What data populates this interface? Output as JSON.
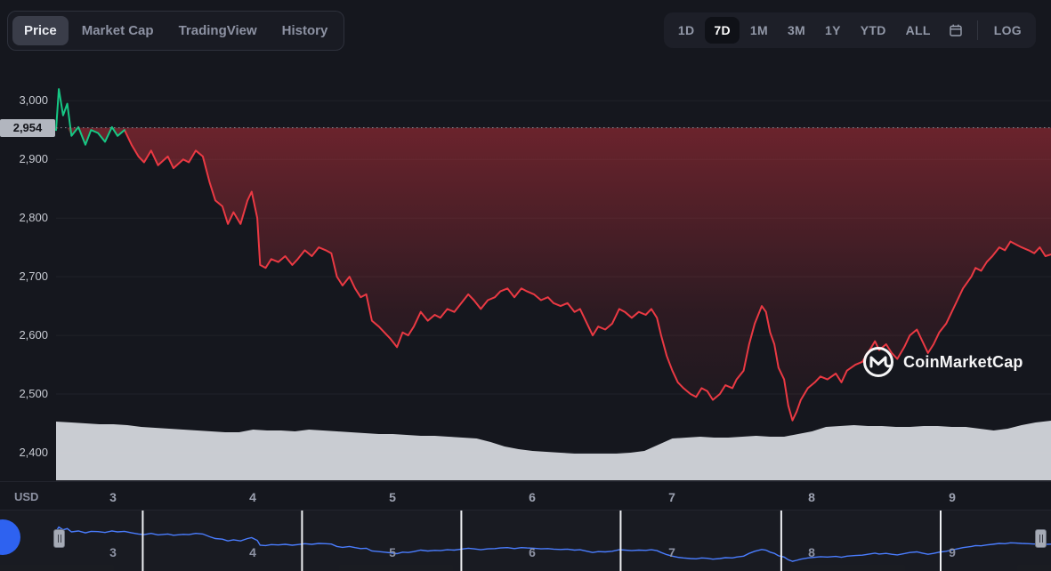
{
  "header": {
    "view_tabs": [
      {
        "label": "Price",
        "active": true
      },
      {
        "label": "Market Cap",
        "active": false
      },
      {
        "label": "TradingView",
        "active": false
      },
      {
        "label": "History",
        "active": false
      }
    ],
    "ranges": [
      {
        "label": "1D",
        "active": false
      },
      {
        "label": "7D",
        "active": true
      },
      {
        "label": "1M",
        "active": false
      },
      {
        "label": "3M",
        "active": false
      },
      {
        "label": "1Y",
        "active": false
      },
      {
        "label": "YTD",
        "active": false
      },
      {
        "label": "ALL",
        "active": false
      }
    ],
    "log_label": "LOG"
  },
  "watermark": {
    "text": "CoinMarketCap"
  },
  "icons": {
    "calendar": "calendar-icon",
    "logo": "coinmarketcap-logo-icon",
    "drag_handle": "drag-handle-icon"
  },
  "colors": {
    "up": "#16c784",
    "down": "#ea3943",
    "navigator_line": "#4a7dff",
    "volume_area": "#d9dce2",
    "badge_bg": "#b2b6bf",
    "baseline_dotted": "#8b8f99"
  },
  "chart_data": {
    "type": "line",
    "title": "7D price chart (USD)",
    "unit_label": "USD",
    "current_price_label": "2,954",
    "baseline_price": 2954,
    "x_range": [
      2.59,
      9.71
    ],
    "y_range": [
      2353,
      3058
    ],
    "x_ticks": [
      3,
      4,
      5,
      6,
      7,
      8,
      9
    ],
    "y_ticks": [
      3000,
      2900,
      2800,
      2700,
      2600,
      2500,
      2400
    ],
    "y_tick_labels": [
      "3,000",
      "2,900",
      "2,800",
      "2,700",
      "2,600",
      "2,500",
      "2,400"
    ],
    "grid": "horizontal-faint",
    "legend": "none",
    "series": [
      {
        "name": "price-up-segment",
        "color": "#16c784",
        "points": [
          [
            2.59,
            2950
          ],
          [
            2.61,
            3020
          ],
          [
            2.64,
            2975
          ],
          [
            2.67,
            2995
          ],
          [
            2.7,
            2940
          ],
          [
            2.75,
            2955
          ],
          [
            2.8,
            2925
          ],
          [
            2.84,
            2950
          ],
          [
            2.89,
            2945
          ],
          [
            2.94,
            2930
          ],
          [
            2.99,
            2955
          ],
          [
            3.03,
            2940
          ],
          [
            3.08,
            2950
          ]
        ]
      },
      {
        "name": "price-down-segment",
        "color": "#ea3943",
        "points": [
          [
            3.08,
            2950
          ],
          [
            3.13,
            2925
          ],
          [
            3.18,
            2905
          ],
          [
            3.22,
            2895
          ],
          [
            3.27,
            2915
          ],
          [
            3.32,
            2890
          ],
          [
            3.39,
            2905
          ],
          [
            3.43,
            2885
          ],
          [
            3.5,
            2900
          ],
          [
            3.54,
            2895
          ],
          [
            3.59,
            2915
          ],
          [
            3.64,
            2905
          ],
          [
            3.69,
            2860
          ],
          [
            3.73,
            2830
          ],
          [
            3.78,
            2820
          ],
          [
            3.82,
            2790
          ],
          [
            3.86,
            2810
          ],
          [
            3.91,
            2790
          ],
          [
            3.96,
            2830
          ],
          [
            3.99,
            2845
          ],
          [
            4.03,
            2800
          ],
          [
            4.05,
            2720
          ],
          [
            4.09,
            2715
          ],
          [
            4.13,
            2730
          ],
          [
            4.18,
            2725
          ],
          [
            4.23,
            2735
          ],
          [
            4.28,
            2720
          ],
          [
            4.32,
            2730
          ],
          [
            4.37,
            2745
          ],
          [
            4.42,
            2735
          ],
          [
            4.47,
            2750
          ],
          [
            4.52,
            2745
          ],
          [
            4.56,
            2740
          ],
          [
            4.6,
            2700
          ],
          [
            4.64,
            2685
          ],
          [
            4.69,
            2700
          ],
          [
            4.73,
            2680
          ],
          [
            4.77,
            2665
          ],
          [
            4.81,
            2670
          ],
          [
            4.85,
            2625
          ],
          [
            4.9,
            2615
          ],
          [
            4.94,
            2605
          ],
          [
            4.98,
            2595
          ],
          [
            5.03,
            2580
          ],
          [
            5.07,
            2605
          ],
          [
            5.11,
            2600
          ],
          [
            5.15,
            2615
          ],
          [
            5.2,
            2640
          ],
          [
            5.25,
            2625
          ],
          [
            5.3,
            2635
          ],
          [
            5.34,
            2630
          ],
          [
            5.39,
            2645
          ],
          [
            5.44,
            2640
          ],
          [
            5.49,
            2655
          ],
          [
            5.54,
            2670
          ],
          [
            5.58,
            2660
          ],
          [
            5.63,
            2645
          ],
          [
            5.68,
            2660
          ],
          [
            5.73,
            2665
          ],
          [
            5.77,
            2675
          ],
          [
            5.82,
            2680
          ],
          [
            5.87,
            2665
          ],
          [
            5.92,
            2680
          ],
          [
            5.96,
            2675
          ],
          [
            6.01,
            2670
          ],
          [
            6.06,
            2660
          ],
          [
            6.11,
            2665
          ],
          [
            6.15,
            2655
          ],
          [
            6.2,
            2650
          ],
          [
            6.25,
            2655
          ],
          [
            6.3,
            2640
          ],
          [
            6.34,
            2645
          ],
          [
            6.39,
            2620
          ],
          [
            6.43,
            2600
          ],
          [
            6.47,
            2615
          ],
          [
            6.52,
            2610
          ],
          [
            6.57,
            2620
          ],
          [
            6.62,
            2645
          ],
          [
            6.66,
            2640
          ],
          [
            6.71,
            2630
          ],
          [
            6.76,
            2640
          ],
          [
            6.81,
            2635
          ],
          [
            6.85,
            2645
          ],
          [
            6.89,
            2630
          ],
          [
            6.92,
            2600
          ],
          [
            6.96,
            2565
          ],
          [
            7.0,
            2540
          ],
          [
            7.04,
            2520
          ],
          [
            7.08,
            2510
          ],
          [
            7.13,
            2500
          ],
          [
            7.17,
            2495
          ],
          [
            7.21,
            2510
          ],
          [
            7.25,
            2505
          ],
          [
            7.29,
            2490
          ],
          [
            7.34,
            2500
          ],
          [
            7.38,
            2515
          ],
          [
            7.43,
            2510
          ],
          [
            7.46,
            2525
          ],
          [
            7.51,
            2540
          ],
          [
            7.55,
            2585
          ],
          [
            7.59,
            2620
          ],
          [
            7.64,
            2650
          ],
          [
            7.67,
            2640
          ],
          [
            7.7,
            2605
          ],
          [
            7.73,
            2585
          ],
          [
            7.76,
            2545
          ],
          [
            7.8,
            2525
          ],
          [
            7.83,
            2480
          ],
          [
            7.86,
            2455
          ],
          [
            7.89,
            2470
          ],
          [
            7.92,
            2490
          ],
          [
            7.97,
            2510
          ],
          [
            8.02,
            2520
          ],
          [
            8.06,
            2530
          ],
          [
            8.11,
            2525
          ],
          [
            8.17,
            2535
          ],
          [
            8.21,
            2520
          ],
          [
            8.25,
            2540
          ],
          [
            8.31,
            2550
          ],
          [
            8.36,
            2555
          ],
          [
            8.4,
            2570
          ],
          [
            8.45,
            2590
          ],
          [
            8.48,
            2575
          ],
          [
            8.53,
            2585
          ],
          [
            8.57,
            2570
          ],
          [
            8.61,
            2560
          ],
          [
            8.66,
            2580
          ],
          [
            8.7,
            2600
          ],
          [
            8.75,
            2610
          ],
          [
            8.79,
            2590
          ],
          [
            8.83,
            2570
          ],
          [
            8.87,
            2585
          ],
          [
            8.91,
            2605
          ],
          [
            8.96,
            2620
          ],
          [
            9.0,
            2640
          ],
          [
            9.04,
            2660
          ],
          [
            9.08,
            2680
          ],
          [
            9.14,
            2700
          ],
          [
            9.17,
            2715
          ],
          [
            9.21,
            2710
          ],
          [
            9.25,
            2725
          ],
          [
            9.29,
            2735
          ],
          [
            9.34,
            2750
          ],
          [
            9.38,
            2745
          ],
          [
            9.42,
            2760
          ],
          [
            9.46,
            2755
          ],
          [
            9.5,
            2750
          ],
          [
            9.55,
            2745
          ],
          [
            9.59,
            2740
          ],
          [
            9.63,
            2750
          ],
          [
            9.67,
            2735
          ],
          [
            9.71,
            2738
          ]
        ]
      }
    ],
    "volume": {
      "note": "relative height of gray volume area, 0-70 scale, estimated",
      "max": 70,
      "points": [
        [
          2.59,
          66
        ],
        [
          2.7,
          65
        ],
        [
          2.8,
          64
        ],
        [
          2.9,
          63
        ],
        [
          3.0,
          63
        ],
        [
          3.1,
          62
        ],
        [
          3.2,
          60
        ],
        [
          3.3,
          59
        ],
        [
          3.4,
          58
        ],
        [
          3.5,
          57
        ],
        [
          3.6,
          56
        ],
        [
          3.7,
          55
        ],
        [
          3.8,
          54
        ],
        [
          3.9,
          54
        ],
        [
          4.0,
          57
        ],
        [
          4.1,
          56
        ],
        [
          4.2,
          56
        ],
        [
          4.3,
          55
        ],
        [
          4.4,
          57
        ],
        [
          4.5,
          56
        ],
        [
          4.6,
          55
        ],
        [
          4.7,
          54
        ],
        [
          4.8,
          53
        ],
        [
          4.9,
          52
        ],
        [
          5.0,
          52
        ],
        [
          5.1,
          51
        ],
        [
          5.2,
          50
        ],
        [
          5.3,
          50
        ],
        [
          5.4,
          49
        ],
        [
          5.5,
          48
        ],
        [
          5.6,
          47
        ],
        [
          5.7,
          43
        ],
        [
          5.8,
          38
        ],
        [
          5.9,
          35
        ],
        [
          6.0,
          33
        ],
        [
          6.1,
          32
        ],
        [
          6.2,
          31
        ],
        [
          6.3,
          30
        ],
        [
          6.4,
          30
        ],
        [
          6.5,
          30
        ],
        [
          6.6,
          30
        ],
        [
          6.7,
          31
        ],
        [
          6.8,
          33
        ],
        [
          6.9,
          40
        ],
        [
          7.0,
          47
        ],
        [
          7.1,
          48
        ],
        [
          7.2,
          49
        ],
        [
          7.3,
          48
        ],
        [
          7.4,
          48
        ],
        [
          7.5,
          49
        ],
        [
          7.6,
          50
        ],
        [
          7.7,
          49
        ],
        [
          7.8,
          49
        ],
        [
          7.9,
          52
        ],
        [
          8.0,
          55
        ],
        [
          8.1,
          60
        ],
        [
          8.2,
          61
        ],
        [
          8.3,
          62
        ],
        [
          8.4,
          61
        ],
        [
          8.5,
          61
        ],
        [
          8.6,
          60
        ],
        [
          8.7,
          60
        ],
        [
          8.8,
          61
        ],
        [
          8.9,
          61
        ],
        [
          9.0,
          60
        ],
        [
          9.1,
          60
        ],
        [
          9.2,
          58
        ],
        [
          9.3,
          56
        ],
        [
          9.4,
          58
        ],
        [
          9.5,
          62
        ],
        [
          9.6,
          65
        ],
        [
          9.71,
          67
        ]
      ]
    },
    "navigator": {
      "labels": [
        3,
        4,
        5,
        6,
        7,
        8,
        9
      ],
      "separator_days": [
        3.21,
        4.35,
        5.49,
        6.63,
        7.78,
        8.92
      ]
    }
  }
}
